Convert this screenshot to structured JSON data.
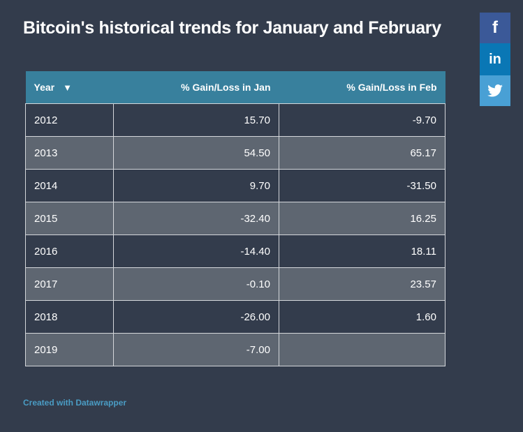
{
  "title": "Bitcoin's historical trends for January and February",
  "share": {
    "facebook_icon": "facebook-icon",
    "linkedin_icon": "linkedin-icon",
    "twitter_icon": "twitter-icon",
    "facebook_glyph": "f",
    "linkedin_glyph": "in",
    "colors": {
      "facebook": "#3b5998",
      "linkedin": "#0a77b5",
      "twitter": "#49a0d5"
    }
  },
  "chart_data": {
    "type": "table",
    "columns": [
      "Year",
      "% Gain/Loss in Jan",
      "% Gain/Loss in Feb"
    ],
    "sort_indicator": "▼",
    "rows": [
      [
        "2012",
        "15.70",
        "-9.70"
      ],
      [
        "2013",
        "54.50",
        "65.17"
      ],
      [
        "2014",
        "9.70",
        "-31.50"
      ],
      [
        "2015",
        "-32.40",
        "16.25"
      ],
      [
        "2016",
        "-14.40",
        "18.11"
      ],
      [
        "2017",
        "-0.10",
        "23.57"
      ],
      [
        "2018",
        "-26.00",
        "1.60"
      ],
      [
        "2019",
        "-7.00",
        ""
      ]
    ]
  },
  "colors": {
    "background": "#333c4c",
    "header": "#38809d",
    "row_alt": "#5e6671",
    "credit": "#4a9cc4"
  },
  "credit": "Created with Datawrapper"
}
